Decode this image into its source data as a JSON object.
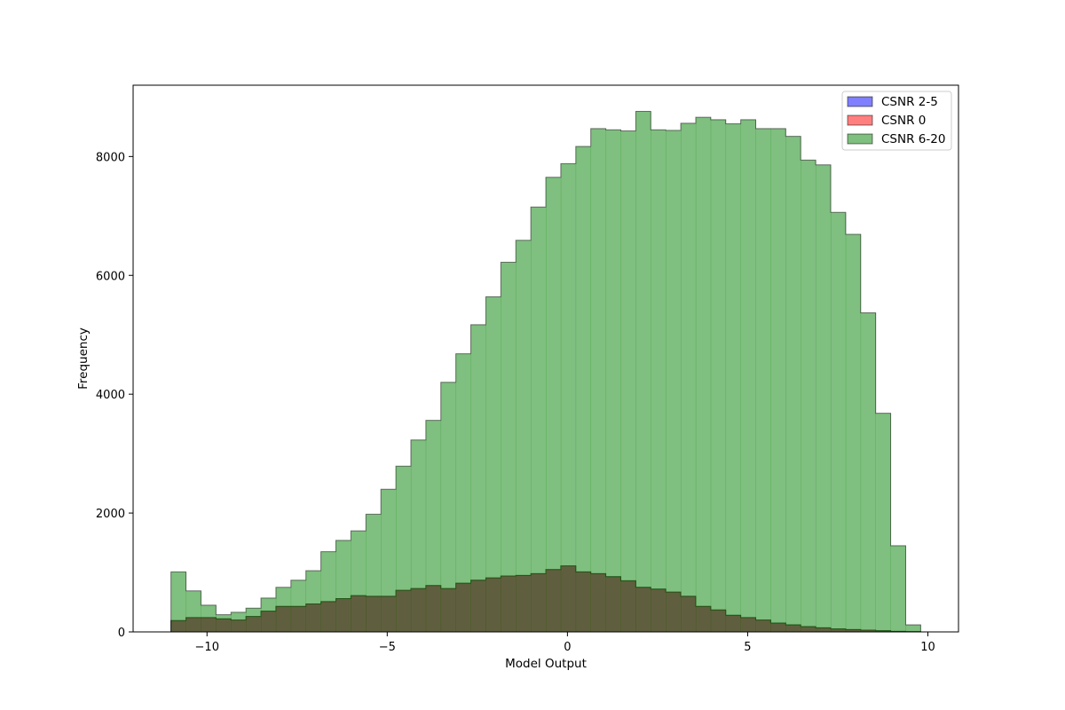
{
  "chart_data": {
    "type": "bar",
    "title": "",
    "xlabel": "Model Output",
    "ylabel": "Frequency",
    "xlim": [
      -12.05,
      10.85
    ],
    "ylim": [
      0,
      9200
    ],
    "xticks": [
      -10,
      -5,
      0,
      5,
      10
    ],
    "xtick_labels": [
      "−10",
      "−5",
      "0",
      "5",
      "10"
    ],
    "yticks": [
      0,
      2000,
      4000,
      6000,
      8000
    ],
    "ytick_labels": [
      "0",
      "2000",
      "4000",
      "6000",
      "8000"
    ],
    "grid": false,
    "legend_position": "top-right",
    "bin_edges": [
      -11.0,
      -10.584,
      -10.168,
      -9.752,
      -9.336,
      -8.92,
      -8.504,
      -8.088,
      -7.672,
      -7.256,
      -6.84,
      -6.424,
      -6.008,
      -5.592,
      -5.176,
      -4.76,
      -4.344,
      -3.928,
      -3.512,
      -3.096,
      -2.68,
      -2.264,
      -1.848,
      -1.432,
      -1.016,
      -0.6,
      -0.184,
      0.232,
      0.648,
      1.064,
      1.48,
      1.896,
      2.312,
      2.728,
      3.144,
      3.56,
      3.976,
      4.392,
      4.808,
      5.224,
      5.64,
      6.056,
      6.472,
      6.888,
      7.304,
      7.72,
      8.136,
      8.552,
      8.968,
      9.384,
      9.8
    ],
    "series": [
      {
        "name": "CSNR 2-5",
        "color": "#0000ff",
        "counts": [
          190,
          240,
          240,
          220,
          200,
          260,
          350,
          430,
          430,
          470,
          510,
          560,
          610,
          600,
          600,
          700,
          730,
          780,
          730,
          820,
          870,
          910,
          940,
          950,
          980,
          1050,
          1110,
          1010,
          980,
          930,
          860,
          750,
          720,
          670,
          600,
          430,
          370,
          280,
          240,
          200,
          150,
          120,
          90,
          70,
          50,
          40,
          30,
          20,
          10,
          5
        ]
      },
      {
        "name": "CSNR 0",
        "color": "#ff0000",
        "counts": [
          190,
          240,
          240,
          220,
          200,
          260,
          350,
          430,
          430,
          470,
          510,
          560,
          610,
          600,
          600,
          700,
          730,
          780,
          730,
          820,
          870,
          910,
          940,
          950,
          980,
          1050,
          1110,
          1010,
          980,
          930,
          860,
          750,
          720,
          670,
          600,
          430,
          370,
          280,
          240,
          200,
          150,
          120,
          90,
          70,
          50,
          40,
          30,
          20,
          10,
          5
        ]
      },
      {
        "name": "CSNR 6-20",
        "color": "#008000",
        "counts": [
          1010,
          690,
          450,
          290,
          330,
          400,
          570,
          750,
          870,
          1030,
          1350,
          1540,
          1700,
          1980,
          2400,
          2790,
          3230,
          3560,
          4200,
          4680,
          5170,
          5640,
          6220,
          6590,
          7150,
          7650,
          7880,
          8170,
          8470,
          8450,
          8430,
          8760,
          8450,
          8440,
          8560,
          8660,
          8620,
          8550,
          8620,
          8470,
          8470,
          8340,
          7940,
          7860,
          7060,
          6690,
          5370,
          3680,
          1450,
          120
        ]
      }
    ]
  }
}
